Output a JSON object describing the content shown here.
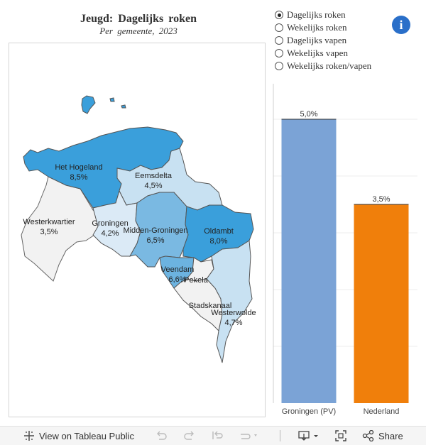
{
  "title": {
    "main": "Jeugd:  Dagelijks  roken",
    "sub": "Per  gemeente,  2023"
  },
  "indicators": [
    {
      "label": "Dagelijks roken",
      "selected": true
    },
    {
      "label": "Wekelijks roken",
      "selected": false
    },
    {
      "label": "Dagelijks vapen",
      "selected": false
    },
    {
      "label": "Wekelijks vapen",
      "selected": false
    },
    {
      "label": "Wekelijks roken/vapen",
      "selected": false
    }
  ],
  "info_icon": "info-icon",
  "map": {
    "regions": [
      {
        "name": "Het Hogeland",
        "value": "8,5%",
        "color": "#3a9fdb"
      },
      {
        "name": "Eemsdelta",
        "value": "4,5%",
        "color": "#c8e1f2"
      },
      {
        "name": "Westerkwartier",
        "value": "3,5%",
        "color": "#f2f2f2"
      },
      {
        "name": "Groningen",
        "value": "4,2%",
        "color": "#dbeaf6"
      },
      {
        "name": "Midden-Groningen",
        "value": "6,5%",
        "color": "#7ab9e2"
      },
      {
        "name": "Oldambt",
        "value": "8,0%",
        "color": "#3a9fdb"
      },
      {
        "name": "Veendam",
        "value": "6,6%",
        "color": "#6cb3e0"
      },
      {
        "name": "Pekela",
        "value": "",
        "color": "#f2f2f2"
      },
      {
        "name": "Stadskanaal",
        "value": "",
        "color": "#f2f2f2"
      },
      {
        "name": "Westerwolde",
        "value": "4,7%",
        "color": "#c8e1f2"
      }
    ]
  },
  "chart_data": {
    "type": "bar",
    "categories": [
      "Groningen (PV)",
      "Nederland"
    ],
    "values": [
      5.0,
      3.5
    ],
    "value_labels": [
      "5,0%",
      "3,5%"
    ],
    "colors": [
      "#7ba3d6",
      "#f07f0b"
    ],
    "ylim": [
      0,
      5.5
    ],
    "grid": true
  },
  "toolbar": {
    "view_label": "View on Tableau Public",
    "share_label": "Share",
    "icons": [
      "tableau-icon",
      "undo-icon",
      "redo-icon",
      "revert-icon",
      "refresh-icon",
      "download-icon",
      "fullscreen-icon",
      "share-icon"
    ]
  }
}
